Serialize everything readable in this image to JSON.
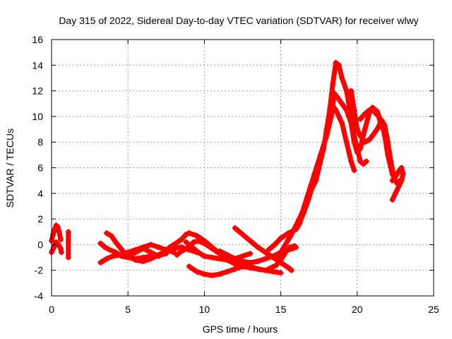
{
  "chart_data": {
    "type": "scatter",
    "title": "Day 315 of 2022, Sidereal Day-to-day VTEC variation (SDTVAR) for receiver wlwy",
    "xlabel": "GPS time / hours",
    "ylabel": "SDTVAR / TECUs",
    "xlim": [
      0,
      25
    ],
    "ylim": [
      -4,
      16
    ],
    "x_ticks": [
      "0",
      "5",
      "10",
      "15",
      "20",
      "25"
    ],
    "y_ticks": [
      "-4",
      "-2",
      "0",
      "2",
      "4",
      "6",
      "8",
      "10",
      "12",
      "14",
      "16"
    ],
    "grid": true,
    "marker": "plus",
    "color": "#ff0000",
    "series": [
      {
        "name": "t0",
        "points": [
          [
            0.0,
            0.3
          ],
          [
            0.1,
            0.8
          ],
          [
            0.2,
            1.2
          ],
          [
            0.3,
            1.5
          ],
          [
            0.4,
            1.4
          ],
          [
            0.5,
            1.0
          ],
          [
            0.6,
            0.4
          ]
        ]
      },
      {
        "name": "t1",
        "points": [
          [
            0.0,
            -0.6
          ],
          [
            0.15,
            -0.2
          ],
          [
            0.3,
            0.2
          ],
          [
            0.45,
            0.0
          ],
          [
            0.6,
            -0.3
          ],
          [
            0.65,
            -0.6
          ]
        ]
      },
      {
        "name": "t2",
        "points": [
          [
            1.1,
            1.0
          ],
          [
            1.1,
            -1.0
          ]
        ]
      },
      {
        "name": "t3",
        "points": [
          [
            3.2,
            0.1
          ],
          [
            3.5,
            -0.2
          ],
          [
            3.8,
            -0.4
          ],
          [
            4.2,
            -0.6
          ],
          [
            4.6,
            -0.9
          ],
          [
            5.0,
            -1.0
          ],
          [
            5.5,
            -1.1
          ],
          [
            6.0,
            -1.0
          ],
          [
            6.5,
            -0.9
          ],
          [
            7.0,
            -0.8
          ],
          [
            7.5,
            -0.7
          ]
        ]
      },
      {
        "name": "t4",
        "points": [
          [
            3.2,
            -1.4
          ],
          [
            3.6,
            -1.1
          ],
          [
            4.0,
            -0.9
          ],
          [
            4.5,
            -0.8
          ],
          [
            5.0,
            -0.6
          ],
          [
            5.5,
            -0.4
          ],
          [
            6.0,
            -0.2
          ],
          [
            6.5,
            0.0
          ],
          [
            7.0,
            -0.2
          ],
          [
            7.5,
            -0.4
          ],
          [
            8.0,
            -0.6
          ]
        ]
      },
      {
        "name": "t5",
        "points": [
          [
            3.6,
            0.9
          ],
          [
            3.9,
            0.7
          ],
          [
            4.2,
            0.2
          ],
          [
            4.6,
            -0.4
          ],
          [
            5.0,
            -0.9
          ],
          [
            5.5,
            -1.2
          ],
          [
            6.0,
            -1.3
          ],
          [
            6.5,
            -1.1
          ],
          [
            7.0,
            -0.8
          ],
          [
            7.5,
            -0.5
          ]
        ]
      },
      {
        "name": "t6",
        "points": [
          [
            5.0,
            -0.9
          ],
          [
            5.5,
            -0.6
          ],
          [
            6.0,
            -0.3
          ],
          [
            6.5,
            -0.6
          ],
          [
            7.0,
            -0.9
          ],
          [
            7.5,
            -0.6
          ],
          [
            8.0,
            -0.3
          ],
          [
            8.5,
            -0.2
          ],
          [
            9.0,
            -0.4
          ],
          [
            9.5,
            -0.6
          ]
        ]
      },
      {
        "name": "t7",
        "points": [
          [
            7.5,
            -0.4
          ],
          [
            8.0,
            0.0
          ],
          [
            8.5,
            0.4
          ],
          [
            8.8,
            0.8
          ],
          [
            9.0,
            0.9
          ],
          [
            9.5,
            0.7
          ],
          [
            10.0,
            0.3
          ],
          [
            10.5,
            -0.2
          ],
          [
            11.0,
            -0.7
          ],
          [
            11.5,
            -1.2
          ],
          [
            12.0,
            -1.5
          ],
          [
            12.5,
            -1.7
          ],
          [
            13.0,
            -1.8
          ],
          [
            13.5,
            -1.9
          ],
          [
            14.0,
            -2.0
          ],
          [
            14.5,
            -2.1
          ],
          [
            15.0,
            -2.2
          ]
        ]
      },
      {
        "name": "t8",
        "points": [
          [
            8.2,
            -0.8
          ],
          [
            8.5,
            -0.5
          ],
          [
            9.0,
            -0.2
          ],
          [
            9.3,
            0.2
          ],
          [
            9.6,
            0.3
          ],
          [
            10.0,
            0.1
          ],
          [
            10.5,
            -0.3
          ],
          [
            11.0,
            -0.7
          ],
          [
            11.5,
            -1.0
          ],
          [
            12.0,
            -1.3
          ],
          [
            12.5,
            -1.5
          ],
          [
            13.0,
            -1.7
          ],
          [
            13.5,
            -1.9
          ],
          [
            14.0,
            -2.0
          ]
        ]
      },
      {
        "name": "t9",
        "points": [
          [
            8.8,
            0.2
          ],
          [
            9.2,
            -0.2
          ],
          [
            9.6,
            -0.6
          ],
          [
            10.0,
            -0.9
          ],
          [
            10.5,
            -1.0
          ],
          [
            11.0,
            -1.1
          ],
          [
            11.5,
            -1.2
          ],
          [
            12.0,
            -1.1
          ],
          [
            12.5,
            -0.9
          ],
          [
            13.0,
            -0.7
          ]
        ]
      },
      {
        "name": "t10",
        "points": [
          [
            9.0,
            -1.7
          ],
          [
            9.5,
            -2.1
          ],
          [
            10.0,
            -2.3
          ],
          [
            10.5,
            -2.4
          ],
          [
            11.0,
            -2.3
          ],
          [
            11.5,
            -2.1
          ],
          [
            12.0,
            -1.9
          ],
          [
            12.5,
            -1.7
          ]
        ]
      },
      {
        "name": "t11",
        "points": [
          [
            11.0,
            -0.5
          ],
          [
            11.5,
            -0.8
          ],
          [
            12.0,
            -1.1
          ],
          [
            12.5,
            -1.3
          ],
          [
            13.0,
            -1.4
          ],
          [
            13.5,
            -1.3
          ],
          [
            14.0,
            -1.1
          ],
          [
            14.5,
            -0.9
          ],
          [
            15.0,
            -0.6
          ],
          [
            15.5,
            -0.4
          ],
          [
            15.8,
            -0.3
          ]
        ]
      },
      {
        "name": "t12",
        "points": [
          [
            12.0,
            1.3
          ],
          [
            12.5,
            0.8
          ],
          [
            13.0,
            0.3
          ],
          [
            13.5,
            -0.2
          ],
          [
            14.0,
            -0.6
          ],
          [
            14.5,
            -1.0
          ],
          [
            15.0,
            -1.4
          ],
          [
            15.5,
            -1.8
          ],
          [
            15.7,
            -2.0
          ]
        ]
      },
      {
        "name": "t13",
        "points": [
          [
            14.2,
            -1.9
          ],
          [
            14.7,
            -1.6
          ],
          [
            15.0,
            -1.2
          ],
          [
            15.3,
            -0.6
          ],
          [
            15.6,
            -0.2
          ],
          [
            15.9,
            -0.1
          ],
          [
            16.0,
            -0.2
          ]
        ]
      },
      {
        "name": "t14",
        "points": [
          [
            14.2,
            -0.4
          ],
          [
            14.6,
            0.0
          ],
          [
            15.0,
            0.5
          ],
          [
            15.5,
            0.9
          ],
          [
            16.0,
            1.2
          ],
          [
            16.2,
            1.6
          ],
          [
            16.5,
            2.5
          ],
          [
            16.8,
            3.5
          ],
          [
            17.0,
            4.3
          ],
          [
            17.3,
            5.0
          ],
          [
            17.5,
            6.0
          ],
          [
            17.8,
            7.5
          ],
          [
            18.0,
            9.0
          ],
          [
            18.2,
            10.5
          ],
          [
            18.4,
            12.5
          ],
          [
            18.6,
            14.2
          ],
          [
            18.8,
            14.0
          ],
          [
            19.0,
            13.0
          ],
          [
            19.3,
            12.0
          ],
          [
            19.6,
            10.0
          ],
          [
            19.8,
            8.5
          ],
          [
            20.0,
            7.5
          ],
          [
            20.2,
            6.5
          ],
          [
            20.4,
            6.3
          ],
          [
            20.6,
            6.5
          ]
        ]
      },
      {
        "name": "t15",
        "points": [
          [
            14.8,
            -1.0
          ],
          [
            15.2,
            -0.2
          ],
          [
            15.6,
            0.6
          ],
          [
            16.0,
            1.5
          ],
          [
            16.4,
            2.5
          ],
          [
            16.8,
            4.0
          ],
          [
            17.2,
            5.5
          ],
          [
            17.6,
            7.0
          ],
          [
            18.0,
            8.5
          ],
          [
            18.3,
            10.0
          ],
          [
            18.5,
            11.8
          ],
          [
            18.7,
            11.5
          ],
          [
            19.0,
            11.0
          ],
          [
            19.3,
            10.5
          ],
          [
            19.6,
            9.5
          ],
          [
            19.8,
            8.0
          ],
          [
            20.0,
            7.2
          ],
          [
            20.2,
            7.5
          ],
          [
            20.5,
            9.0
          ],
          [
            20.8,
            10.3
          ],
          [
            21.0,
            10.7
          ],
          [
            21.3,
            10.4
          ],
          [
            21.6,
            9.5
          ],
          [
            21.8,
            8.5
          ],
          [
            22.0,
            7.0
          ],
          [
            22.3,
            5.5
          ],
          [
            22.6,
            4.8
          ],
          [
            22.8,
            5.0
          ]
        ]
      },
      {
        "name": "t16",
        "points": [
          [
            18.3,
            11.0
          ],
          [
            18.6,
            10.5
          ],
          [
            19.0,
            9.5
          ],
          [
            19.3,
            8.0
          ],
          [
            19.6,
            6.5
          ],
          [
            19.8,
            5.8
          ]
        ]
      },
      {
        "name": "t17",
        "points": [
          [
            19.6,
            12.0
          ],
          [
            19.8,
            10.5
          ],
          [
            20.0,
            9.0
          ],
          [
            20.2,
            8.5
          ],
          [
            20.5,
            8.0
          ],
          [
            20.8,
            8.2
          ],
          [
            21.0,
            8.5
          ],
          [
            21.3,
            9.0
          ],
          [
            21.6,
            9.7
          ],
          [
            21.8,
            9.3
          ],
          [
            22.0,
            8.0
          ],
          [
            22.2,
            6.5
          ],
          [
            22.4,
            5.2
          ]
        ]
      },
      {
        "name": "t18",
        "points": [
          [
            20.2,
            9.8
          ],
          [
            20.5,
            10.2
          ],
          [
            20.8,
            10.5
          ],
          [
            21.1,
            10.4
          ],
          [
            21.4,
            10.0
          ],
          [
            21.6,
            9.2
          ],
          [
            21.8,
            8.8
          ]
        ]
      },
      {
        "name": "t19",
        "points": [
          [
            22.3,
            3.5
          ],
          [
            22.5,
            4.0
          ],
          [
            22.7,
            4.5
          ],
          [
            22.9,
            5.0
          ],
          [
            23.0,
            5.5
          ],
          [
            22.9,
            6.0
          ],
          [
            22.7,
            5.7
          ],
          [
            22.5,
            5.3
          ],
          [
            22.3,
            5.0
          ]
        ]
      }
    ]
  }
}
